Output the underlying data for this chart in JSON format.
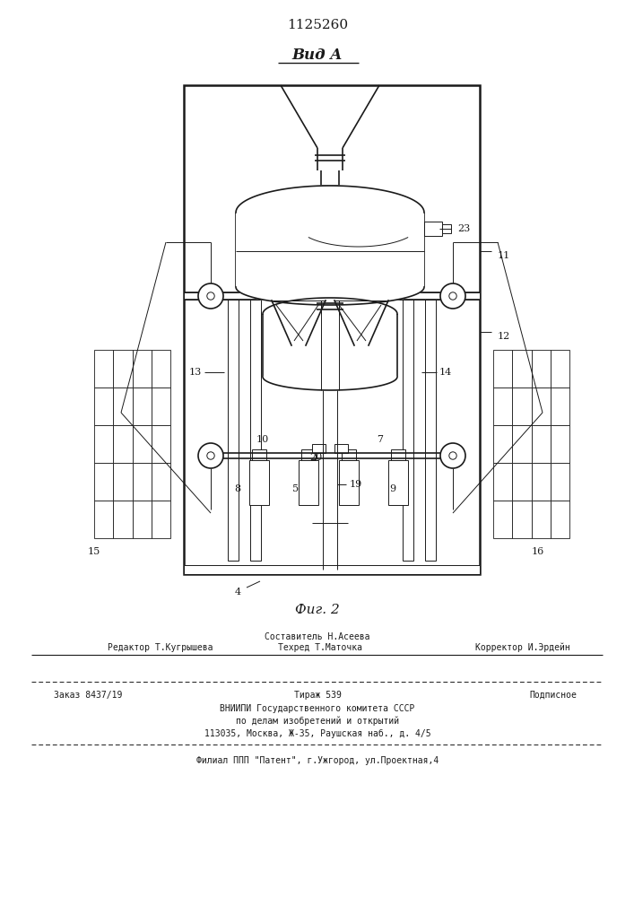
{
  "patent_number": "1125260",
  "view_label": "Вид A",
  "fig_label": "Фиг. 2",
  "bg_color": "#ffffff",
  "line_color": "#1a1a1a",
  "footer": {
    "editor": "Редактор Т.Кугрышева",
    "compiler": "Составитель Н.Асеева",
    "techred": "Техред Т.Маточка",
    "corrector": "Корректор И.Эрдейн",
    "order": "Заказ 8437/19",
    "tirazh": "Тираж 539",
    "podpisnoe": "Подписное",
    "vniiipi": "ВНИИПИ Государственного комитета СССР",
    "po_delam": "по делам изобретений и открытий",
    "address": "113035, Москва, Ж-35, Раушская наб., д. 4/5",
    "filial": "Филиал ППП \"Патент\", г.Ужгород, ул.Проектная,4"
  }
}
